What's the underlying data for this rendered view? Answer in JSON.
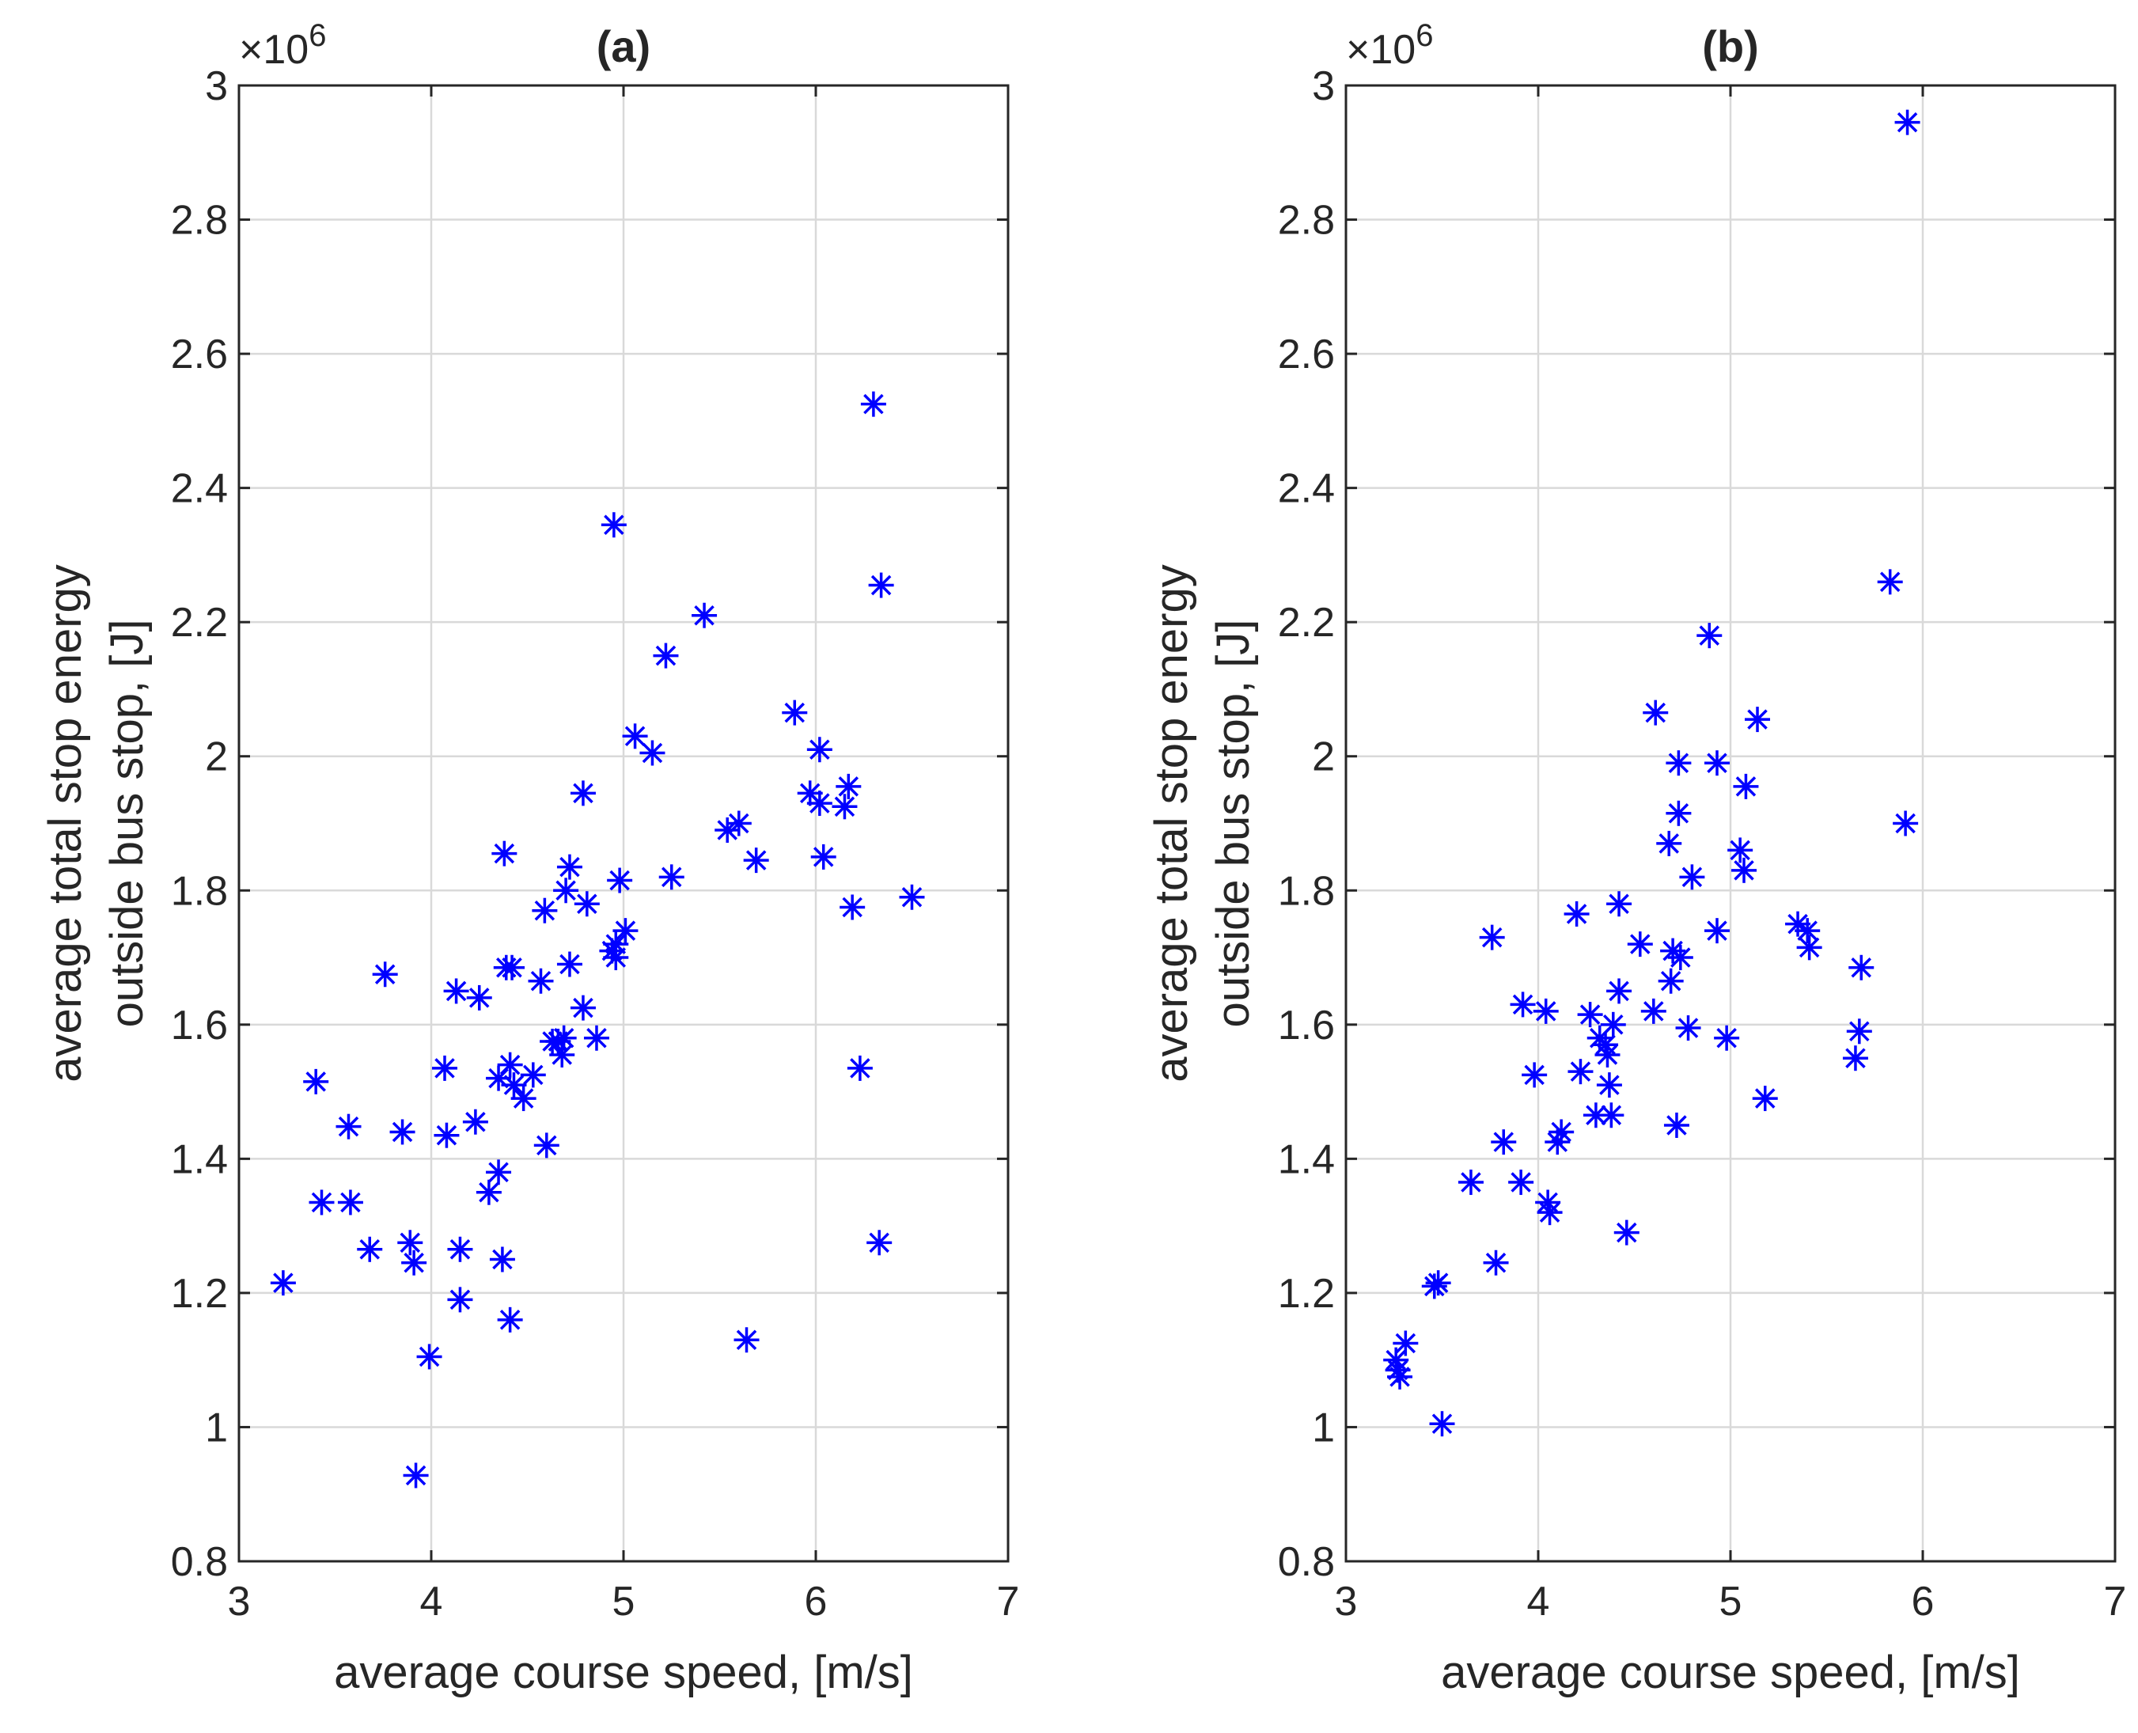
{
  "chart_data": [
    {
      "type": "scatter",
      "title": "(a)",
      "xlabel": "average course speed, [m/s]",
      "ylabel": [
        "average total stop energy",
        "outside bus stop, [J]"
      ],
      "y_exponent_label": "×10",
      "y_exponent_power": "6",
      "xlim": [
        3,
        7
      ],
      "ylim": [
        0.8,
        3.0
      ],
      "xticks": [
        3,
        4,
        5,
        6,
        7
      ],
      "yticks": [
        0.8,
        1,
        1.2,
        1.4,
        1.6,
        1.8,
        2,
        2.2,
        2.4,
        2.6,
        2.8,
        3
      ],
      "xtick_labels": [
        "3",
        "4",
        "5",
        "6",
        "7"
      ],
      "ytick_labels": [
        "0.8",
        "1",
        "1.2",
        "1.4",
        "1.6",
        "1.8",
        "2",
        "2.2",
        "2.4",
        "2.6",
        "2.8",
        "3"
      ],
      "grid": true,
      "marker": "asterisk",
      "color": "#0000ff",
      "series": [
        {
          "x": [
            3.23,
            3.4,
            3.43,
            3.57,
            3.58,
            3.68,
            3.76,
            3.85,
            3.89,
            3.92,
            3.91,
            3.99,
            4.07,
            4.08,
            4.13,
            4.15,
            4.15,
            4.23,
            4.25,
            4.3,
            4.35,
            4.35,
            4.37,
            4.38,
            4.39,
            4.41,
            4.41,
            4.42,
            4.43,
            4.48,
            4.53,
            4.57,
            4.59,
            4.6,
            4.63,
            4.66,
            4.68,
            4.69,
            4.7,
            4.72,
            4.72,
            4.79,
            4.79,
            4.81,
            4.86,
            4.94,
            4.95,
            4.96,
            4.96,
            4.98,
            5.01,
            5.06,
            5.15,
            5.22,
            5.25,
            5.42,
            5.54,
            5.6,
            5.64,
            5.69,
            5.89,
            5.97,
            6.02,
            6.02,
            6.04,
            6.15,
            6.17,
            6.19,
            6.23,
            6.3,
            6.34,
            6.33,
            6.5
          ],
          "y": [
            1.215,
            1.515,
            1.335,
            1.448,
            1.335,
            1.265,
            1.675,
            1.44,
            1.275,
            0.928,
            1.245,
            1.105,
            1.535,
            1.435,
            1.65,
            1.19,
            1.265,
            1.455,
            1.64,
            1.35,
            1.52,
            1.38,
            1.25,
            1.855,
            1.685,
            1.54,
            1.16,
            1.685,
            1.51,
            1.49,
            1.525,
            1.665,
            1.77,
            1.42,
            1.575,
            1.575,
            1.555,
            1.58,
            1.8,
            1.69,
            1.835,
            1.625,
            1.945,
            1.78,
            1.58,
            1.71,
            2.345,
            1.7,
            1.72,
            1.815,
            1.74,
            2.03,
            2.005,
            2.15,
            1.82,
            2.21,
            1.89,
            1.9,
            1.13,
            1.845,
            2.065,
            1.945,
            1.93,
            2.01,
            1.85,
            1.925,
            1.955,
            1.775,
            1.535,
            2.525,
            2.255,
            1.275,
            1.79
          ]
        }
      ]
    },
    {
      "type": "scatter",
      "title": "(b)",
      "xlabel": "average course speed, [m/s]",
      "ylabel": [
        "average total stop energy",
        "outside bus stop, [J]"
      ],
      "y_exponent_label": "×10",
      "y_exponent_power": "6",
      "xlim": [
        3,
        7
      ],
      "ylim": [
        0.8,
        3.0
      ],
      "xticks": [
        3,
        4,
        5,
        6,
        7
      ],
      "yticks": [
        0.8,
        1,
        1.2,
        1.4,
        1.6,
        1.8,
        2,
        2.2,
        2.4,
        2.6,
        2.8,
        3
      ],
      "xtick_labels": [
        "3",
        "4",
        "5",
        "6",
        "7"
      ],
      "ytick_labels": [
        "0.8",
        "1",
        "1.2",
        "1.4",
        "1.6",
        "1.8",
        "2",
        "2.2",
        "2.4",
        "2.6",
        "2.8",
        "3"
      ],
      "grid": true,
      "marker": "asterisk",
      "color": "#0000ff",
      "series": [
        {
          "x": [
            3.26,
            3.27,
            3.28,
            3.31,
            3.46,
            3.5,
            3.48,
            3.65,
            3.76,
            3.78,
            3.82,
            3.91,
            3.92,
            3.98,
            4.04,
            4.05,
            4.06,
            4.1,
            4.12,
            4.2,
            4.22,
            4.27,
            4.3,
            4.32,
            4.35,
            4.36,
            4.37,
            4.38,
            4.39,
            4.42,
            4.42,
            4.46,
            4.53,
            4.6,
            4.61,
            4.68,
            4.69,
            4.7,
            4.72,
            4.73,
            4.73,
            4.74,
            4.78,
            4.8,
            4.89,
            4.93,
            4.93,
            4.98,
            5.05,
            5.07,
            5.08,
            5.14,
            5.18,
            5.35,
            5.4,
            5.41,
            5.65,
            5.67,
            5.68,
            5.83,
            5.91,
            5.92
          ],
          "y": [
            1.1,
            1.085,
            1.075,
            1.125,
            1.21,
            1.005,
            1.215,
            1.365,
            1.73,
            1.245,
            1.425,
            1.365,
            1.63,
            1.525,
            1.62,
            1.335,
            1.32,
            1.425,
            1.44,
            1.765,
            1.53,
            1.615,
            1.465,
            1.58,
            1.57,
            1.555,
            1.51,
            1.465,
            1.6,
            1.78,
            1.65,
            1.29,
            1.72,
            1.62,
            2.065,
            1.87,
            1.665,
            1.71,
            1.45,
            1.99,
            1.915,
            1.7,
            1.595,
            1.82,
            2.18,
            1.99,
            1.74,
            1.58,
            1.86,
            1.83,
            1.955,
            2.055,
            1.49,
            1.75,
            1.74,
            1.715,
            1.55,
            1.59,
            1.685,
            2.26,
            1.9,
            2.945
          ]
        }
      ]
    }
  ]
}
